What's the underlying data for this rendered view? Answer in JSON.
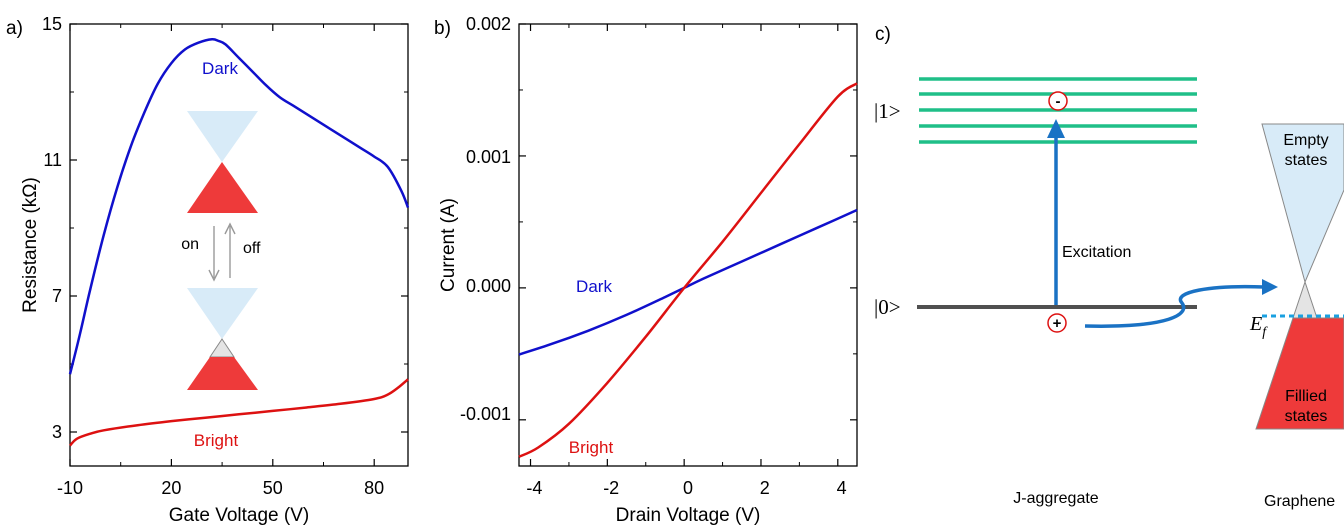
{
  "chart_data": [
    {
      "panel": "a)",
      "type": "line",
      "xlabel": "Gate Voltage (V)",
      "ylabel": "Resistance (kΩ)",
      "xlim": [
        -10,
        90
      ],
      "ylim": [
        2,
        15
      ],
      "xticks": [
        "-10",
        "20",
        "50",
        "80"
      ],
      "yticks": [
        "3",
        "7",
        "11",
        "15"
      ],
      "series": [
        {
          "name": "Dark",
          "color": "#1010cc",
          "x": [
            -10,
            -7,
            -4,
            0,
            4,
            8,
            12,
            16,
            20,
            24,
            28,
            32,
            34,
            36,
            40,
            44,
            48,
            52,
            56,
            60,
            64,
            68,
            72,
            76,
            80,
            84,
            88,
            90
          ],
          "y": [
            4.7,
            5.9,
            7.2,
            8.8,
            10.2,
            11.4,
            12.4,
            13.25,
            13.85,
            14.25,
            14.45,
            14.55,
            14.5,
            14.4,
            14.0,
            13.6,
            13.2,
            12.85,
            12.6,
            12.35,
            12.1,
            11.85,
            11.6,
            11.35,
            11.1,
            10.8,
            10.1,
            9.6
          ]
        },
        {
          "name": "Bright",
          "color": "#dd1111",
          "x": [
            -10,
            -8,
            -4,
            0,
            10,
            20,
            30,
            40,
            50,
            60,
            70,
            80,
            84,
            87,
            90
          ],
          "y": [
            2.6,
            2.8,
            2.95,
            3.05,
            3.2,
            3.32,
            3.42,
            3.52,
            3.62,
            3.72,
            3.83,
            3.97,
            4.1,
            4.3,
            4.55
          ]
        }
      ],
      "inset": {
        "on_label": "on",
        "off_label": "off"
      }
    },
    {
      "panel": "b)",
      "type": "line",
      "xlabel": "Drain Voltage (V)",
      "ylabel": "Current (A)",
      "xlim": [
        -4.3,
        4.5
      ],
      "ylim": [
        -0.00135,
        0.002
      ],
      "xticks": [
        "-4",
        "-2",
        "0",
        "2",
        "4"
      ],
      "yticks": [
        "-0.001",
        "0.000",
        "0.001",
        "0.002"
      ],
      "series": [
        {
          "name": "Dark",
          "color": "#1010cc",
          "x": [
            -4.3,
            -3.5,
            -2.5,
            -1.5,
            -0.5,
            0,
            0.5,
            1.5,
            2.5,
            3.5,
            4.5
          ],
          "y": [
            -0.000505,
            -0.00043,
            -0.000325,
            -0.000205,
            -7e-05,
            0,
            7e-05,
            0.0002,
            0.00033,
            0.00046,
            0.00059
          ]
        },
        {
          "name": "Bright",
          "color": "#dd1111",
          "x": [
            -4.3,
            -3.8,
            -3,
            -2,
            -1,
            0,
            1,
            2,
            3,
            4,
            4.5
          ],
          "y": [
            -0.00128,
            -0.00121,
            -0.00103,
            -0.00072,
            -0.00037,
            0,
            0.00035,
            0.00072,
            0.00109,
            0.00145,
            0.00155
          ]
        }
      ]
    },
    {
      "panel": "c)",
      "type": "diagram",
      "level_excited": "|1>",
      "level_ground": "|0>",
      "excitation_label": "Excitation",
      "minus_sign": "-",
      "plus_sign": "+",
      "fermi_symbol": "E",
      "fermi_subscript": "f",
      "empty_line1": "Empty",
      "empty_line2": "states",
      "filled_line1": "Fillied",
      "filled_line2": "states",
      "jagg_label": "J-aggregate",
      "graphene_label": "Graphene",
      "colors": {
        "excited_levels": "#1fbf88",
        "ground_level": "#505050",
        "arrow": "#1a72c4",
        "circle": "#dd1111",
        "cone_empty": "#d8ebf8",
        "cone_filled": "#ee3a3a",
        "fermi_line": "#1aa0e0"
      }
    }
  ]
}
